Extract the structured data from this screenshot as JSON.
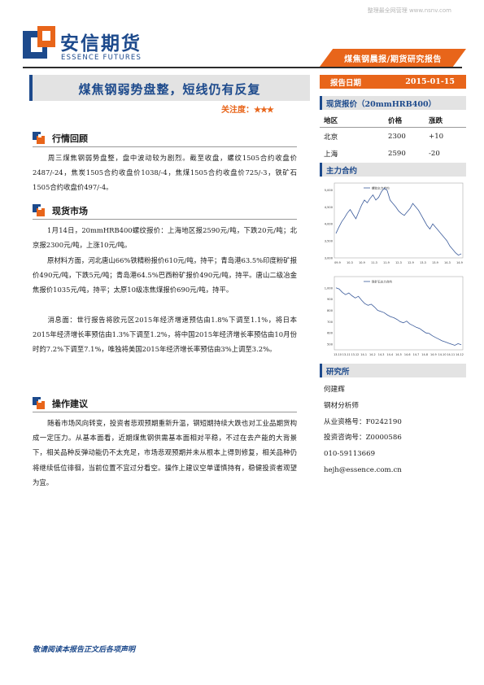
{
  "watermark": "整理最全网营理 www.nsnv.com",
  "brand": {
    "cn": "安信期货",
    "en": "ESSENCE FUTURES",
    "blue": "#1d4a8c",
    "orange": "#e8651a"
  },
  "report_tag": "煤焦钢晨报/期货研究报告",
  "title": "煤焦钢弱势盘整，短线仍有反复",
  "attention": {
    "label": "关注度：",
    "stars": "★★★",
    "rating": 3
  },
  "sections": {
    "review": {
      "title": "行情回顾",
      "p1": "周三煤焦钢弱势盘整，盘中波动较为剧烈。截至收盘，螺纹1505合约收盘价2487/-24，焦炭1505合约收盘价1038/-4，焦煤1505合约收盘价725/-3，铁矿石1505合约收盘价497/-4。"
    },
    "spot": {
      "title": "现货市场",
      "p1": "1月14日，20mmHRB400螺纹报价：上海地区报2590元/吨，下跌20元/吨；北京报2300元/吨，上涨10元/吨。",
      "p2": "原材料方面，河北唐山66%铁精粉报价610元/吨，持平；青岛港63.5%印度粉矿报价490元/吨，下跌5元/吨；青岛港64.5%巴西粉矿报价490元/吨，持平。唐山二级冶金焦报价1035元/吨，持平；太原10级冻焦煤报价690元/吨，持平。",
      "p3": "消息面：世行报告将欧元区2015年经济增速预估由1.8%下调至1.1%，将日本2015年经济增长率预估由1.3%下调至1.2%，将中国2015年经济增长率预估由10月份时的7.2%下调至7.1%，唯独将美国2015年经济增长率预估由3%上调至3.2%。"
    },
    "advice": {
      "title": "操作建议",
      "p1": "随着市场风向转变，投资者悲观预期重新升温，钢短期持续大跌也对工业品期货构成一定压力。从基本面看，近期煤焦钢供需基本面相对平稳，不过在去产能的大背景下，相关品种反弹动能仍不太充足，市场悲观预期并未从根本上得到修复，相关品种仍将继续低位徘徊，当前位置不宜过分看空。操作上建议空单谨慎持有，稳健投资者观望为宜。"
    }
  },
  "footer_note": "敬请阅读本报告正文后各项声明",
  "report_date": {
    "label": "报告日期",
    "value": "2015-01-15"
  },
  "spot_quote": {
    "title": "现货报价（20mmHRB400）",
    "headers": [
      "地区",
      "价格",
      "涨跌"
    ],
    "rows": [
      {
        "region": "北京",
        "price": "2300",
        "change": "+10"
      },
      {
        "region": "上海",
        "price": "2590",
        "change": "-20"
      }
    ]
  },
  "main_contract": {
    "title": "主力合约"
  },
  "chart_data": [
    {
      "type": "line",
      "legend": "螺纹主力合约",
      "ylim": [
        3000,
        5200
      ],
      "yticks": [
        "5,000",
        "4,500",
        "4,000",
        "3,500",
        "3,000"
      ],
      "xticks": [
        "09-9",
        "10-3",
        "10-9",
        "11-3",
        "11-9",
        "12-3",
        "12-9",
        "13-3",
        "13-9",
        "14-3",
        "14-9"
      ],
      "values": [
        3720,
        3900,
        4060,
        4180,
        4320,
        4420,
        4280,
        4150,
        4350,
        4550,
        4700,
        4620,
        4750,
        4850,
        4700,
        4780,
        4950,
        5050,
        4980,
        4700,
        4600,
        4500,
        4380,
        4300,
        4250,
        4350,
        4450,
        4600,
        4500,
        4400,
        4250,
        4100,
        3950,
        3850,
        4000,
        3900,
        3800,
        3700,
        3600,
        3500,
        3350,
        3250,
        3150,
        3080,
        3120
      ]
    },
    {
      "type": "line",
      "legend": "铁矿石主力合约",
      "ylim": [
        450,
        1100
      ],
      "yticks": [
        "1,000",
        "900",
        "800",
        "700",
        "600",
        "500"
      ],
      "xticks": [
        "13-10",
        "13-11",
        "13-12",
        "14-1",
        "14-2",
        "14-3",
        "14-4",
        "14-5",
        "14-6",
        "14-7",
        "14-8",
        "14-9",
        "14-10",
        "14-11",
        "14-12"
      ],
      "values": [
        1000,
        990,
        960,
        940,
        955,
        930,
        910,
        925,
        890,
        860,
        845,
        855,
        830,
        800,
        790,
        780,
        760,
        745,
        735,
        720,
        700,
        690,
        705,
        680,
        665,
        650,
        640,
        620,
        600,
        595,
        575,
        560,
        545,
        530,
        520,
        510,
        500,
        490,
        505,
        495
      ]
    }
  ],
  "research": {
    "title": "研究所",
    "name": "何建辉",
    "role": "钢材分析师",
    "cert": "从业资格号：F0242190",
    "consult": "投资咨询号：Z0000586",
    "phone": "010-59113669",
    "email": "hejh@essence.com.cn"
  }
}
